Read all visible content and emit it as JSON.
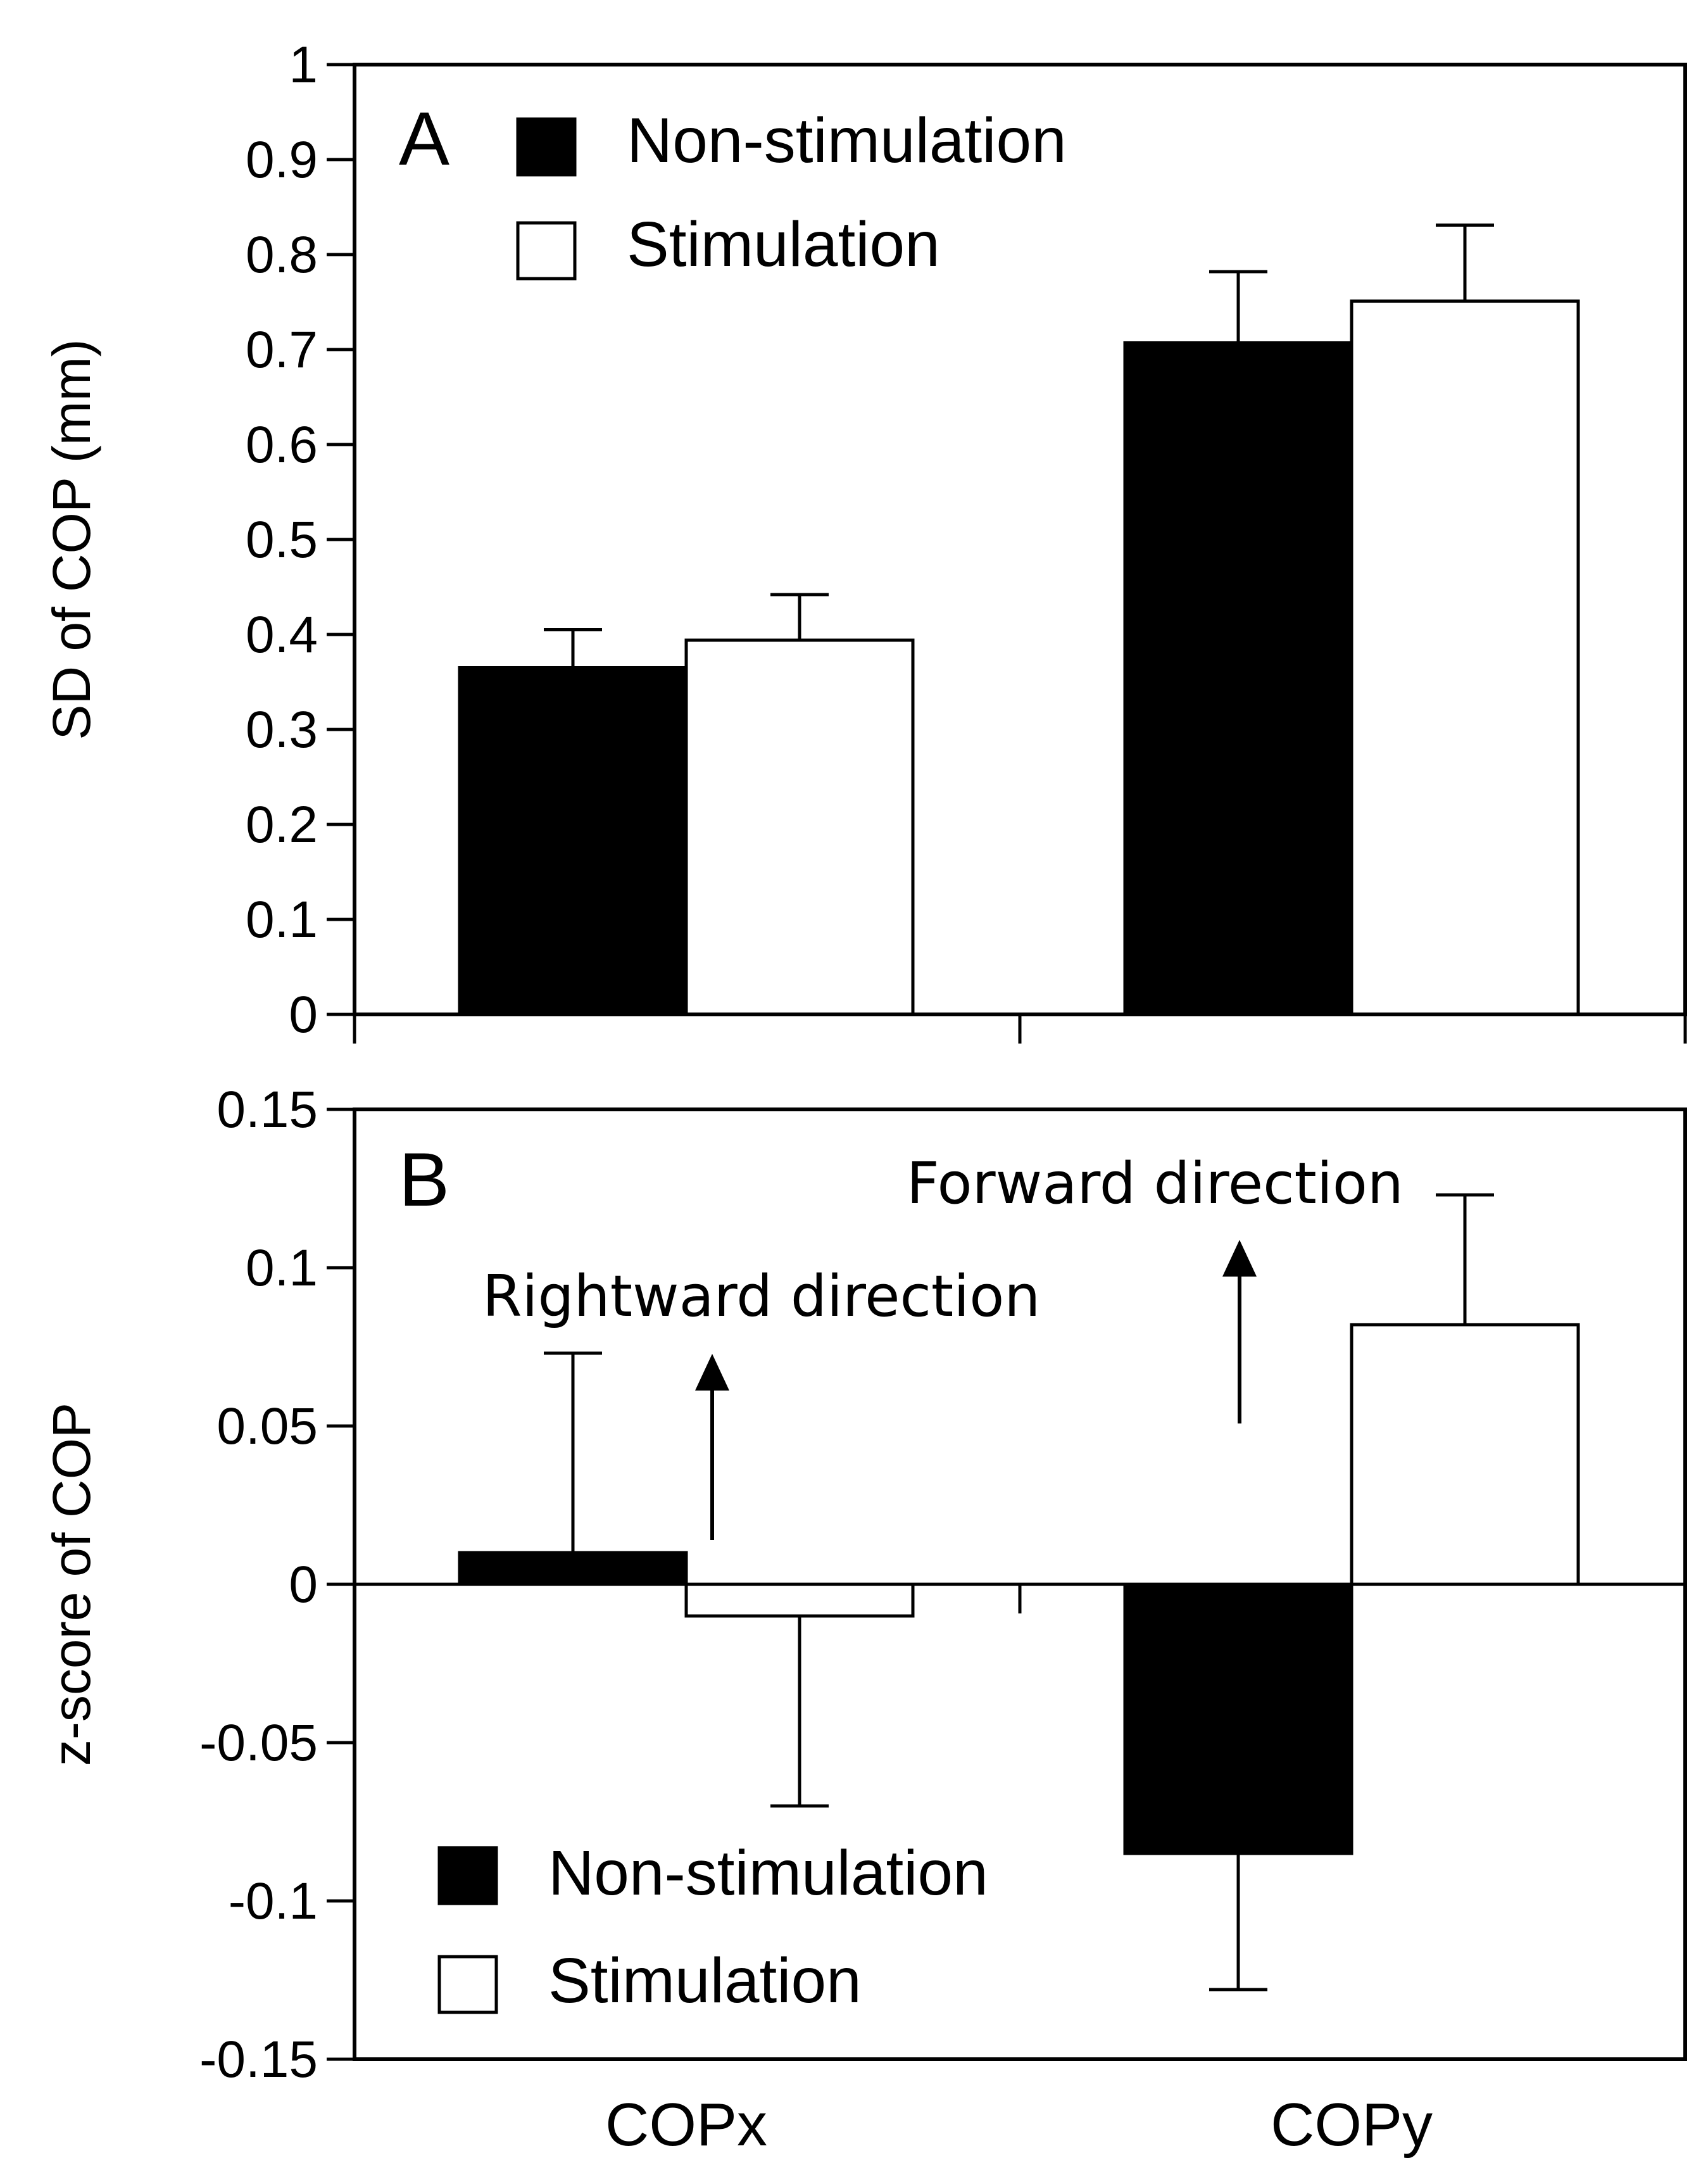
{
  "chart_data": [
    {
      "panel": "A",
      "type": "bar",
      "categories": [
        "COPx",
        "COPy"
      ],
      "series": [
        {
          "name": "Non-stimulation",
          "color": "#000000",
          "values": [
            0.365,
            0.707
          ],
          "errors": [
            0.04,
            0.075
          ]
        },
        {
          "name": "Stimulation",
          "color": "#ffffff",
          "values": [
            0.394,
            0.751
          ],
          "errors": [
            0.048,
            0.08
          ]
        }
      ],
      "ylabel": "SD of COP (mm)",
      "ylim": [
        0,
        1
      ],
      "yticks": [
        "0",
        "0.1",
        "0.2",
        "0.3",
        "0.4",
        "0.5",
        "0.6",
        "0.7",
        "0.8",
        "0.9",
        "1"
      ],
      "legend": {
        "position": "top-left",
        "labels": [
          "Non-stimulation",
          "Stimulation"
        ]
      }
    },
    {
      "panel": "B",
      "type": "bar",
      "categories": [
        "COPx",
        "COPy"
      ],
      "series": [
        {
          "name": "Non-stimulation",
          "color": "#000000",
          "values": [
            0.01,
            -0.085
          ],
          "errors": [
            0.063,
            0.043
          ]
        },
        {
          "name": "Stimulation",
          "color": "#ffffff",
          "values": [
            -0.01,
            0.082
          ],
          "errors": [
            0.06,
            0.041
          ]
        }
      ],
      "ylabel": "z-score of COP",
      "ylim": [
        -0.15,
        0.15
      ],
      "yticks": [
        "-0.15",
        "-0.1",
        "-0.05",
        "0",
        "0.05",
        "0.1",
        "0.15"
      ],
      "annotations": [
        "Rightward direction",
        "Forward direction"
      ],
      "legend": {
        "position": "bottom-left",
        "labels": [
          "Non-stimulation",
          "Stimulation"
        ]
      }
    }
  ]
}
